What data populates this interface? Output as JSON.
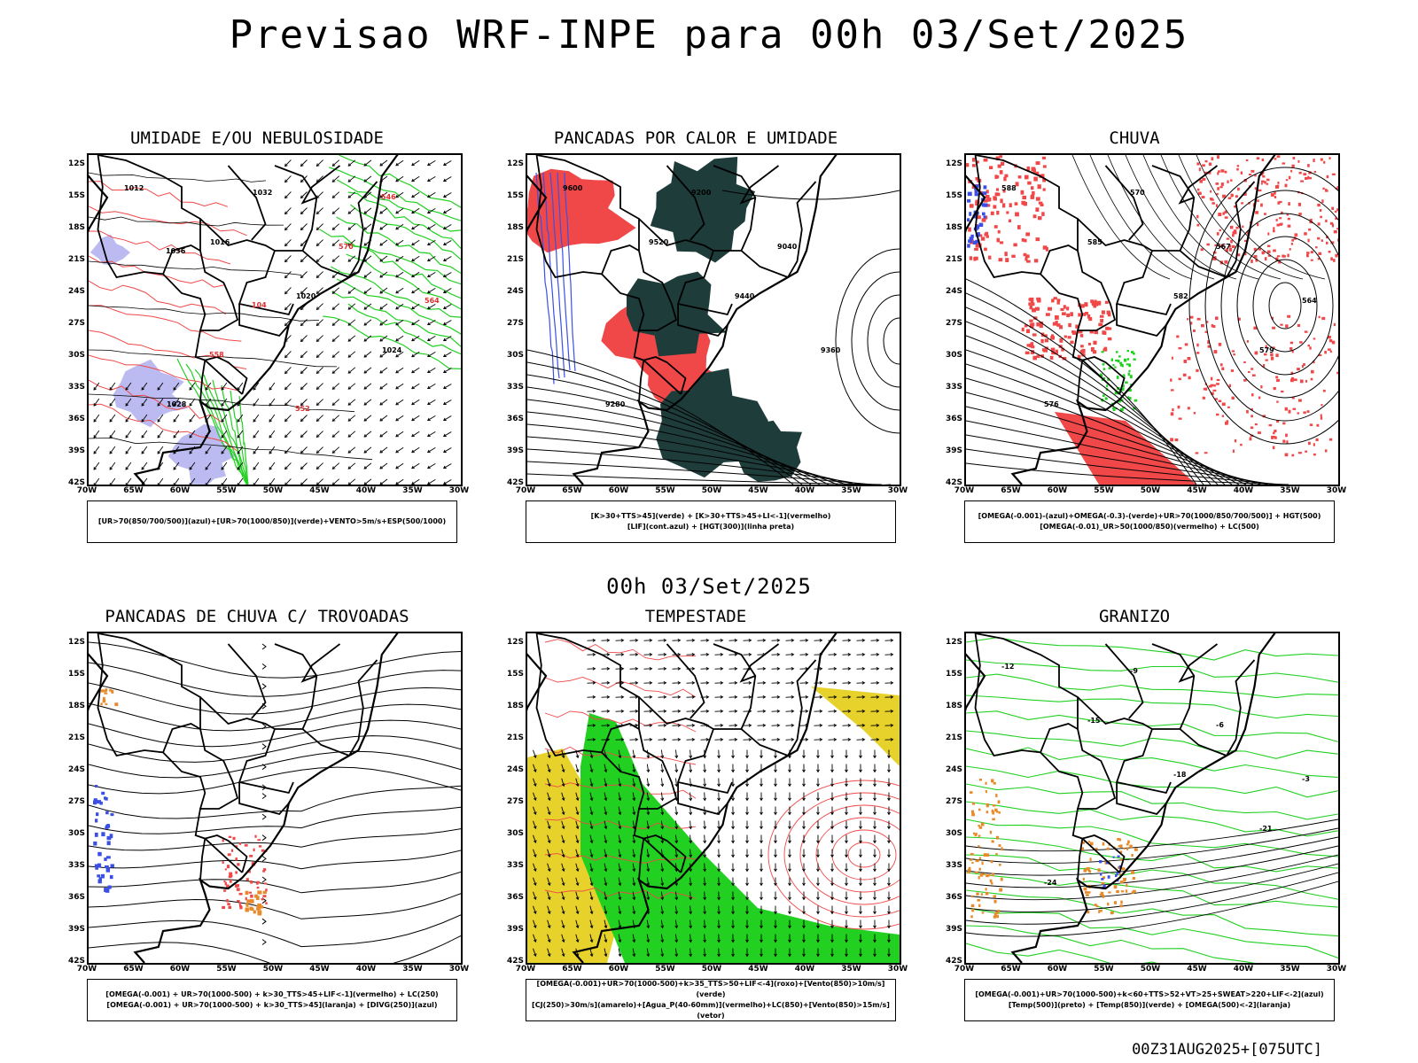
{
  "main_title": "Previsao WRF-INPE  para 00h 03/Set/2025",
  "mid_title": "00h 03/Set/2025",
  "footer": "00Z31AUG2025+[075UTC]",
  "lat_labels": [
    "12S",
    "15S",
    "18S",
    "21S",
    "24S",
    "27S",
    "30S",
    "33S",
    "36S",
    "39S",
    "42S"
  ],
  "lon_labels": [
    "70W",
    "65W",
    "60W",
    "55W",
    "50W",
    "45W",
    "40W",
    "35W",
    "30W"
  ],
  "colors": {
    "blue": "#3b4fe6",
    "lavender": "#b4b4f0",
    "green": "#22d022",
    "red": "#f04848",
    "darkteal": "#1e3c3a",
    "yellow": "#e6d22a",
    "orange": "#e88a2a"
  },
  "panels": [
    {
      "title": "UMIDADE E/OU NEBULOSIDADE",
      "legend": [
        "[UR>70(850/700/500)](azul)+[UR>70(1000/850)](verde)+VENTO>5m/s+ESP(500/1000)"
      ],
      "contour_labels": [
        "1012",
        "1016",
        "1020",
        "1024",
        "1028",
        "1032",
        "570",
        "564",
        "558",
        "552",
        "546",
        "1036",
        "104"
      ]
    },
    {
      "title": "PANCADAS POR CALOR E UMIDADE",
      "legend": [
        "[K>30+TTS>45](verde) + [K>30+TTS>45+LI<-1](vermelho)",
        "[LIF](cont.azul) + [HGT(300)](linha preta)"
      ],
      "contour_labels": [
        "9600",
        "9520",
        "9440",
        "9360",
        "9280",
        "9200",
        "9040"
      ]
    },
    {
      "title": "CHUVA",
      "legend": [
        "[OMEGA(-0.001)-(azul)+OMEGA(-0.3)-(verde)+UR>70(1000/850/700/500)] + HGT(500)",
        "[OMEGA(-0.01)_UR>50(1000/850)(vermelho) + LC(500)"
      ],
      "contour_labels": [
        "588",
        "585",
        "582",
        "579",
        "576",
        "570",
        "567",
        "564"
      ]
    },
    {
      "title": "PANCADAS DE CHUVA C/ TROVOADAS",
      "legend": [
        "[OMEGA(-0.001) + UR>70(1000-500) + k>30_TTS>45+LIF<-1](vermelho) + LC(250)",
        "[OMEGA(-0.001) + UR>70(1000-500) + k>30_TTS>45](laranja) + [DIVG(250)](azul)"
      ],
      "contour_labels": []
    },
    {
      "title": "TEMPESTADE",
      "legend": [
        "[OMEGA(-0.001)+UR>70(1000-500)+k>35_TTS>50+LIF<-4](roxo)+[Vento(850)>10m/s](verde)",
        "[CJ(250)>30m/s](amarelo)+[Agua_P(40-60mm)](vermelho)+LC(850)+[Vento(850)>15m/s](vetor)"
      ],
      "contour_labels": []
    },
    {
      "title": "GRANIZO",
      "legend": [
        "[OMEGA(-0.001)+UR>70(1000-500)+k<60+TTS>52+VT>25+SWEAT>220+LIF<-2](azul)",
        "[Temp(500)](preto) + [Temp(850)](verde) + [OMEGA(500)<-2](laranja)"
      ],
      "contour_labels": [
        "-12",
        "-15",
        "-18",
        "-21",
        "-24",
        "-9",
        "-6",
        "-3"
      ]
    }
  ]
}
